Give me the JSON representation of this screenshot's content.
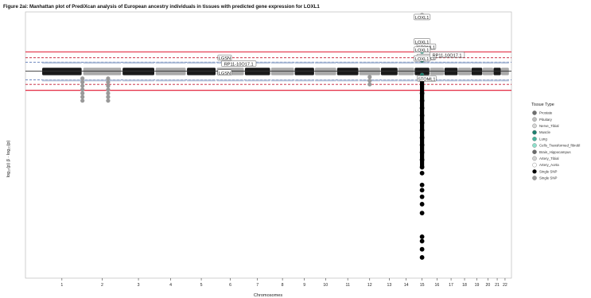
{
  "chart_data": {
    "type": "scatter",
    "title": "Figure 2ai: Manhattan plot of PrediXcan analysis of European ancestry individuals in tissues with predicted gene expression for LOXL1",
    "xlabel": "Chromosomes",
    "ylabel": "log₁₀(p) β · log₁₀(p)",
    "chromosomes": [
      "1",
      "2",
      "3",
      "4",
      "5",
      "6",
      "7",
      "8",
      "9",
      "10",
      "11",
      "12",
      "13",
      "14",
      "15",
      "16",
      "17",
      "18",
      "19",
      "20",
      "21",
      "22"
    ],
    "chrom_widths": [
      10.2,
      9.8,
      8.2,
      7.8,
      7.4,
      7.0,
      6.5,
      5.9,
      5.0,
      5.5,
      5.5,
      5.4,
      4.3,
      4.1,
      3.8,
      3.6,
      3.4,
      3.3,
      2.8,
      2.7,
      1.9,
      2.0
    ],
    "ylim": [
      -28,
      8
    ],
    "thresholds": {
      "red_solid": [
        2.6,
        -2.6
      ],
      "red_dashed": [
        1.8,
        -1.8
      ],
      "blue_dashed": [
        1.2,
        -1.2
      ],
      "black_mid": 0
    },
    "gene_labels": [
      {
        "text": "LOXL1",
        "chrom": "15",
        "pos": 0.5,
        "y": 7.2
      },
      {
        "text": "LOXL1",
        "chrom": "15",
        "pos": 0.5,
        "y": 3.9
      },
      {
        "text": "STOML1",
        "chrom": "15",
        "pos": 0.78,
        "y": 3.2
      },
      {
        "text": "LOXL1",
        "chrom": "15",
        "pos": 0.5,
        "y": 2.8
      },
      {
        "text": "STOML1",
        "chrom": "15",
        "pos": 0.78,
        "y": 1.8
      },
      {
        "text": "LOXL1",
        "chrom": "15",
        "pos": 0.5,
        "y": 1.6
      },
      {
        "text": "RP11-10O17.1",
        "chrom": "16",
        "pos": 1.2,
        "y": 2.1
      },
      {
        "text": "LGSN",
        "chrom": "6",
        "pos": 0.3,
        "y": 1.7
      },
      {
        "text": "RP11-10O17.1",
        "chrom": "6",
        "pos": 0.8,
        "y": 0.9
      },
      {
        "text": "LGSN",
        "chrom": "6",
        "pos": 0.3,
        "y": -0.3
      },
      {
        "text": "STOML1",
        "chrom": "15",
        "pos": 0.8,
        "y": -1.1
      }
    ],
    "legend": {
      "title": "Tissue Type",
      "position": "right",
      "items": [
        {
          "label": "Prostate",
          "color": "#6f6f6f"
        },
        {
          "label": "Pituitary",
          "color": "#bdbdbd"
        },
        {
          "label": "Nerve_Tibial",
          "color": "#d6d6d6"
        },
        {
          "label": "Muscle",
          "color": "#1d7f6e"
        },
        {
          "label": "Lung",
          "color": "#49b49d"
        },
        {
          "label": "Cells_Transformed_fibrobl",
          "color": "#8fe0cc"
        },
        {
          "label": "Brain_Hippocampus",
          "color": "#6b6b6b"
        },
        {
          "label": "Artery_Tibial",
          "color": "#d3d3d3"
        },
        {
          "label": "Artery_Aorta",
          "color": "#ffffff"
        },
        {
          "label": "Single SNP",
          "color": "#000000"
        },
        {
          "label": "Single SNP",
          "color": "#999999"
        }
      ]
    },
    "highlight_points": [
      {
        "chrom": "15",
        "pos": 0.5,
        "y": 7.6,
        "color": "#bdbdbd"
      },
      {
        "chrom": "15",
        "pos": 0.5,
        "y": 3.7,
        "color": "#8fe0cc"
      },
      {
        "chrom": "15",
        "pos": 0.5,
        "y": 2.6,
        "color": "#49b49d"
      },
      {
        "chrom": "15",
        "pos": 0.5,
        "y": 1.4,
        "color": "#1d7f6e"
      },
      {
        "chrom": "15",
        "pos": 0.5,
        "y": -0.5,
        "color": "#1d7f6e"
      },
      {
        "chrom": "6",
        "pos": 0.3,
        "y": 1.1,
        "color": "#6b6b6b"
      },
      {
        "chrom": "6",
        "pos": 0.3,
        "y": -0.2,
        "color": "#6b6b6b"
      }
    ],
    "negative_tail": {
      "chrom": "15",
      "pos": 0.5,
      "points": [
        -3.0,
        -4.0,
        -5.0,
        -6.0,
        -7.0,
        -8.0,
        -9.0,
        -10.0,
        -11.0,
        -12.0,
        -13.0,
        -13.8,
        -15.4,
        -16.1,
        -17.0,
        -18.0,
        -19.2,
        -22.4,
        -23.0,
        -24.1,
        -25.2
      ]
    },
    "side_clusters": [
      {
        "chrom": "2",
        "pos": 0.0,
        "y_min": -4.0,
        "y_max": -1.0,
        "color": "#999999"
      },
      {
        "chrom": "2",
        "pos": 0.65,
        "y_min": -4.2,
        "y_max": -1.0,
        "color": "#999999"
      },
      {
        "chrom": "12",
        "pos": 0.5,
        "y_min": -2.0,
        "y_max": -0.8,
        "color": "#999999"
      }
    ]
  }
}
